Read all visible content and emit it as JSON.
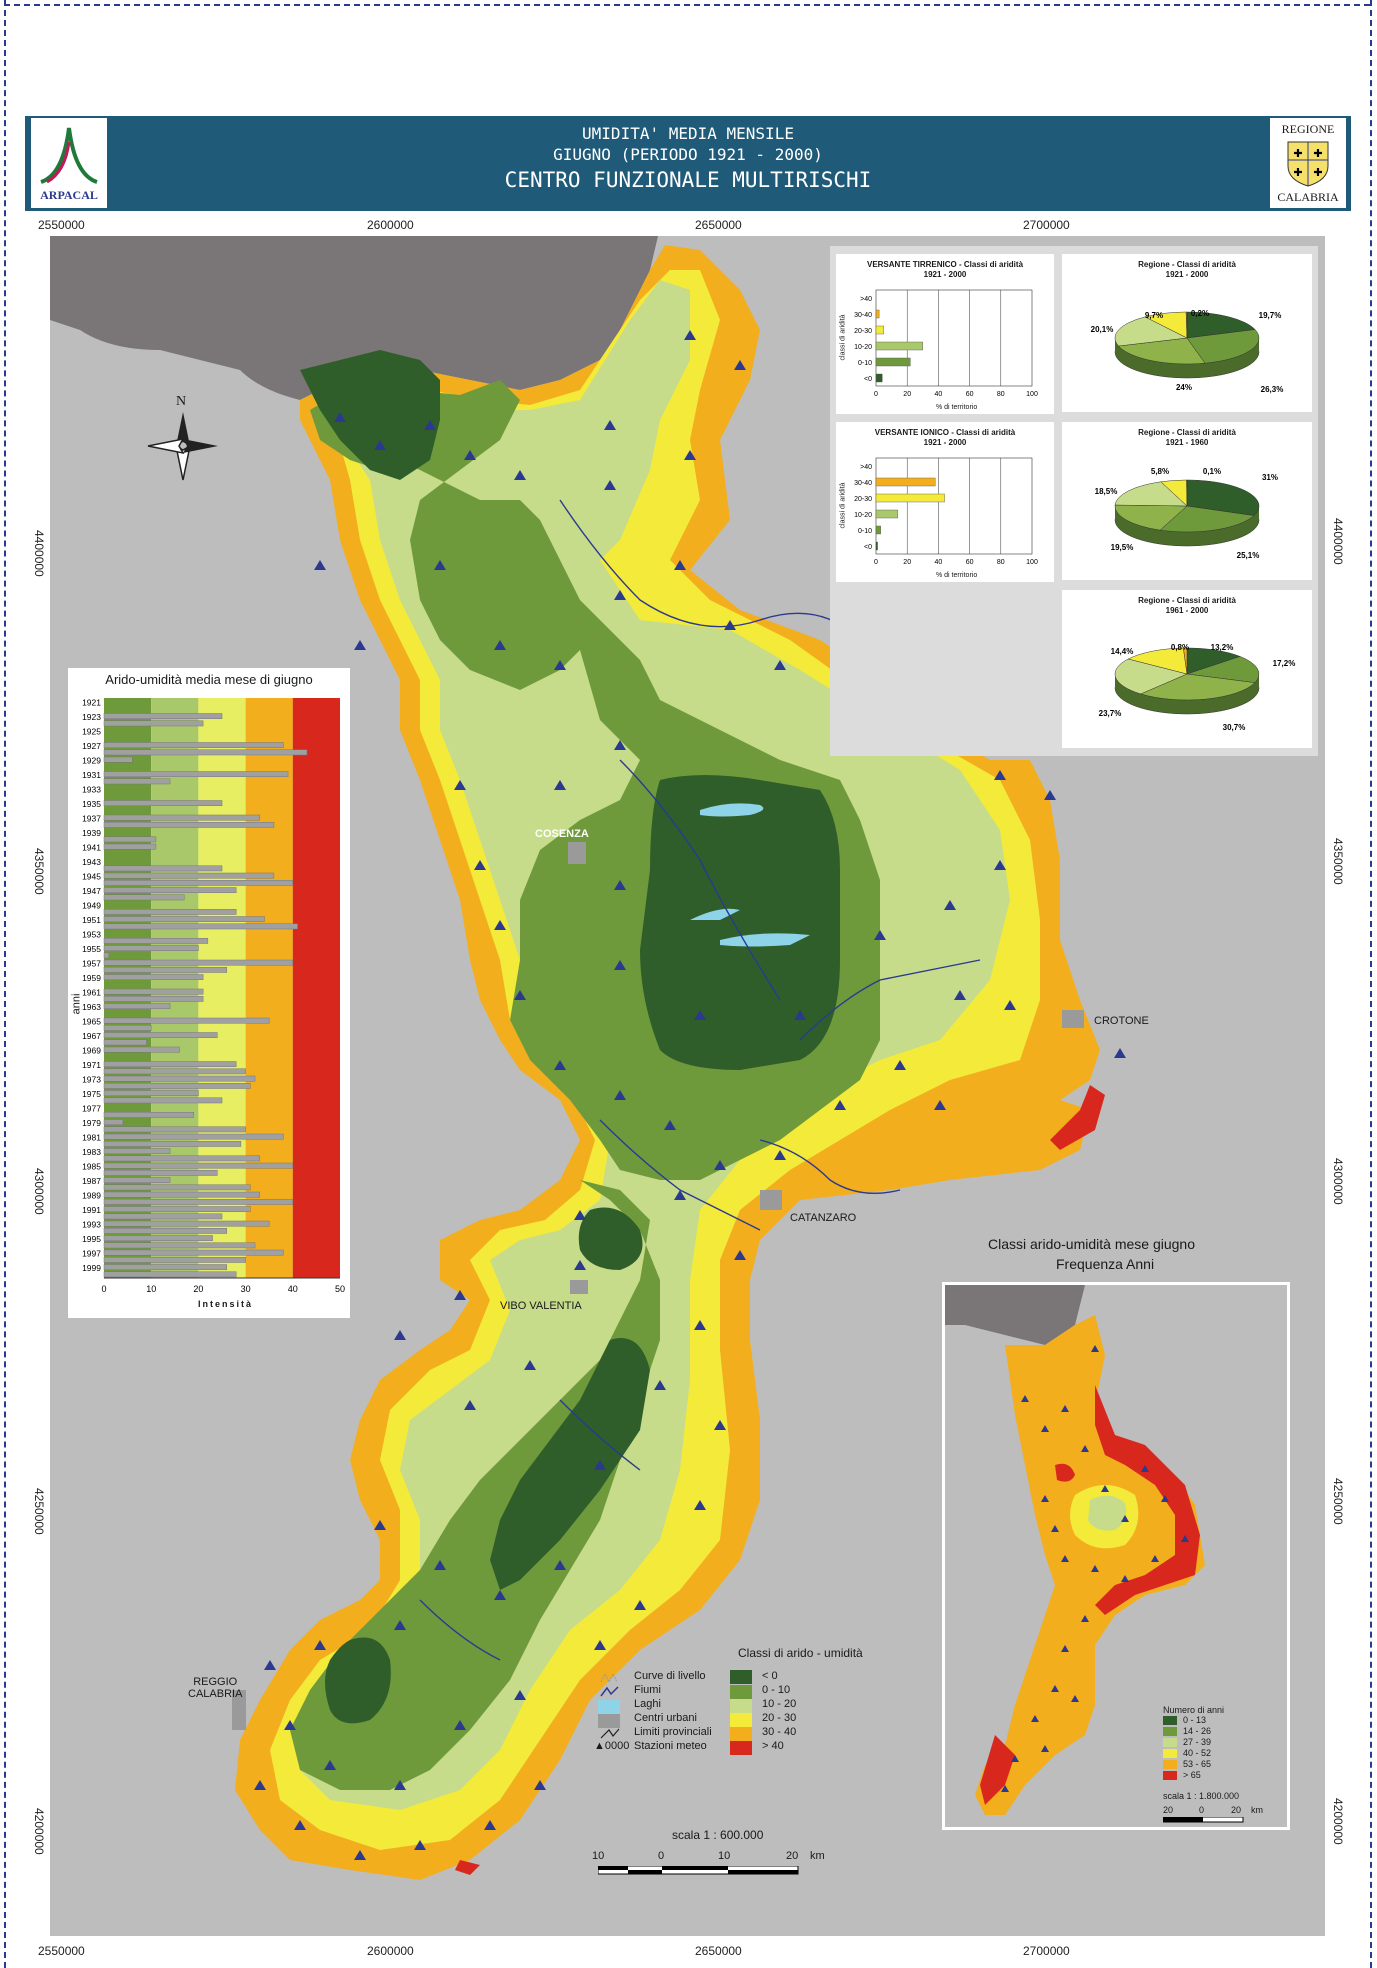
{
  "header": {
    "left_logo_text": "ARPACAL",
    "line1": "UMIDITA' MEDIA MENSILE",
    "line2": "GIUGNO (PERIODO 1921 - 2000)",
    "line3": "CENTRO FUNZIONALE MULTIRISCHI",
    "right_logo_top": "REGIONE",
    "right_logo_bottom": "CALABRIA"
  },
  "coordinates": {
    "x_top": [
      "2550000",
      "2600000",
      "2650000",
      "2700000"
    ],
    "x_bottom": [
      "2550000",
      "2600000",
      "2650000",
      "2700000"
    ],
    "y_left": [
      "4400000",
      "4350000",
      "4300000",
      "4250000",
      "4200000"
    ],
    "y_right": [
      "4400000",
      "4350000",
      "4300000",
      "4250000",
      "4200000"
    ]
  },
  "north_arrow": "N",
  "places": {
    "cosenza": "COSENZA",
    "crotone": "CROTONE",
    "catanzaro": "CATANZARO",
    "vibo": "VIBO VALENTIA",
    "reggio": "REGGIO\nCALABRIA"
  },
  "colors": {
    "lt0": "#2f5e2a",
    "0-10": "#6f9a3c",
    "10-20": "#c7dc8a",
    "20-30": "#f3ea3a",
    "30-40": "#f3ae1e",
    "gt40": "#d8281e",
    "land_grey": "#7a7677",
    "sea": "#bdbdbd"
  },
  "chart_data": [
    {
      "type": "bar",
      "title": "Arido-umidità media mese di giugno",
      "xlabel": "Intensità",
      "ylabel": "anni",
      "xlim": [
        0,
        50
      ],
      "xticks": [
        "0",
        "10",
        "20",
        "30",
        "40",
        "50"
      ],
      "class_bands": [
        {
          "from": 0,
          "to": 10,
          "class": "< 0"
        },
        {
          "from": 10,
          "to": 20,
          "class": "0 - 10"
        },
        {
          "from": 20,
          "to": 30,
          "class": "10 - 20"
        },
        {
          "from": 30,
          "to": 40,
          "class": "20 - 30"
        },
        {
          "from": 40,
          "to": 50,
          "class": "30 - 40"
        }
      ],
      "tick_years": [
        "1921",
        "1923",
        "1925",
        "1927",
        "1929",
        "1931",
        "1933",
        "1935",
        "1937",
        "1939",
        "1941",
        "1943",
        "1945",
        "1947",
        "1949",
        "1951",
        "1953",
        "1955",
        "1957",
        "1959",
        "1961",
        "1963",
        "1965",
        "1967",
        "1969",
        "1971",
        "1973",
        "1975",
        "1977",
        "1979",
        "1981",
        "1983",
        "1985",
        "1987",
        "1989",
        "1991",
        "1993",
        "1995",
        "1997",
        "1999"
      ],
      "categories": [
        "1921",
        "1922",
        "1923",
        "1924",
        "1925",
        "1926",
        "1927",
        "1928",
        "1929",
        "1930",
        "1931",
        "1932",
        "1933",
        "1934",
        "1935",
        "1936",
        "1937",
        "1938",
        "1939",
        "1940",
        "1941",
        "1942",
        "1943",
        "1944",
        "1945",
        "1946",
        "1947",
        "1948",
        "1949",
        "1950",
        "1951",
        "1952",
        "1953",
        "1954",
        "1955",
        "1956",
        "1957",
        "1958",
        "1959",
        "1960",
        "1961",
        "1962",
        "1963",
        "1964",
        "1965",
        "1966",
        "1967",
        "1968",
        "1969",
        "1970",
        "1971",
        "1972",
        "1973",
        "1974",
        "1975",
        "1976",
        "1977",
        "1978",
        "1979",
        "1980",
        "1981",
        "1982",
        "1983",
        "1984",
        "1985",
        "1986",
        "1987",
        "1988",
        "1989",
        "1990",
        "1991",
        "1992",
        "1993",
        "1994",
        "1995",
        "1996",
        "1997",
        "1998",
        "1999",
        "2000"
      ],
      "values": [
        0,
        0,
        25,
        21,
        0,
        0,
        38,
        43,
        6,
        0,
        39,
        14,
        0,
        0,
        25,
        0,
        33,
        36,
        0,
        11,
        11,
        0,
        0,
        25,
        36,
        40,
        28,
        17,
        0,
        28,
        34,
        41,
        0,
        22,
        20,
        1,
        40,
        26,
        21,
        0,
        21,
        21,
        14,
        0,
        35,
        10,
        24,
        9,
        16,
        0,
        28,
        30,
        32,
        31,
        20,
        25,
        0,
        19,
        4,
        30,
        38,
        29,
        14,
        33,
        40,
        24,
        14,
        31,
        33,
        40,
        31,
        25,
        35,
        26,
        23,
        32,
        38,
        30,
        26,
        28
      ]
    },
    {
      "type": "bar",
      "title": "VERSANTE TIRRENICO - Classi di aridità",
      "subtitle": "1921 - 2000",
      "xlabel": "% di territorio",
      "ylabel": "classi di aridità",
      "categories": [
        ">40",
        "30-40",
        "20-30",
        "10-20",
        "0-10",
        "<0"
      ],
      "values": [
        0,
        2,
        5,
        30,
        22,
        4
      ],
      "xlim": [
        0,
        100
      ],
      "xticks": [
        "0",
        "20",
        "40",
        "60",
        "80",
        "100"
      ]
    },
    {
      "type": "bar",
      "title": "VERSANTE IONICO - Classi di aridità",
      "subtitle": "1921 - 2000",
      "xlabel": "% di territorio",
      "ylabel": "classi di aridità",
      "categories": [
        ">40",
        "30-40",
        "20-30",
        "10-20",
        "0-10",
        "<0"
      ],
      "values": [
        0,
        38,
        44,
        14,
        3,
        1
      ],
      "xlim": [
        0,
        100
      ],
      "xticks": [
        "0",
        "20",
        "40",
        "60",
        "80",
        "100"
      ]
    },
    {
      "type": "pie",
      "title": "Regione - Classi di aridità",
      "subtitle": "1921 - 2000",
      "labels": [
        "19,7%",
        "26,3%",
        "24%",
        "20,1%",
        "9,7%",
        "0,2%"
      ],
      "values": [
        19.7,
        26.3,
        24,
        20.1,
        9.7,
        0.2
      ]
    },
    {
      "type": "pie",
      "title": "Regione - Classi di aridità",
      "subtitle": "1921 - 1960",
      "labels": [
        "31%",
        "25,1%",
        "19,5%",
        "18,5%",
        "5,8%",
        "0,1%"
      ],
      "values": [
        31,
        25.1,
        19.5,
        18.5,
        5.8,
        0.1
      ]
    },
    {
      "type": "pie",
      "title": "Regione - Classi di aridità",
      "subtitle": "1961 - 2000",
      "labels": [
        "13,2%",
        "17,2%",
        "30,7%",
        "23,7%",
        "14,4%",
        "0,8%"
      ],
      "values": [
        13.2,
        17.2,
        30.7,
        23.7,
        14.4,
        0.8
      ]
    }
  ],
  "legend": {
    "items": [
      "Curve di livello",
      "Fiumi",
      "Laghi",
      "Centri urbani",
      "Limiti provinciali",
      "Stazioni meteo"
    ],
    "station_symbol": "0000",
    "classes_title": "Classi di arido - umidità",
    "classes": [
      "< 0",
      "0 - 10",
      "10 - 20",
      "20 - 30",
      "30 - 40",
      "> 40"
    ]
  },
  "scale": {
    "label": "scala 1 : 600.000",
    "ticks": [
      "10",
      "0",
      "10",
      "20"
    ],
    "unit": "km"
  },
  "inset": {
    "title1": "Classi arido-umidità mese giugno",
    "title2": "Frequenza Anni",
    "legend_title": "Numero di anni",
    "classes": [
      "0 - 13",
      "14 - 26",
      "27 - 39",
      "40 - 52",
      "53 - 65",
      "> 65"
    ],
    "scale_label": "scala 1 : 1.800.000",
    "scale_ticks": [
      "20",
      "0",
      "20"
    ],
    "scale_unit": "km"
  }
}
